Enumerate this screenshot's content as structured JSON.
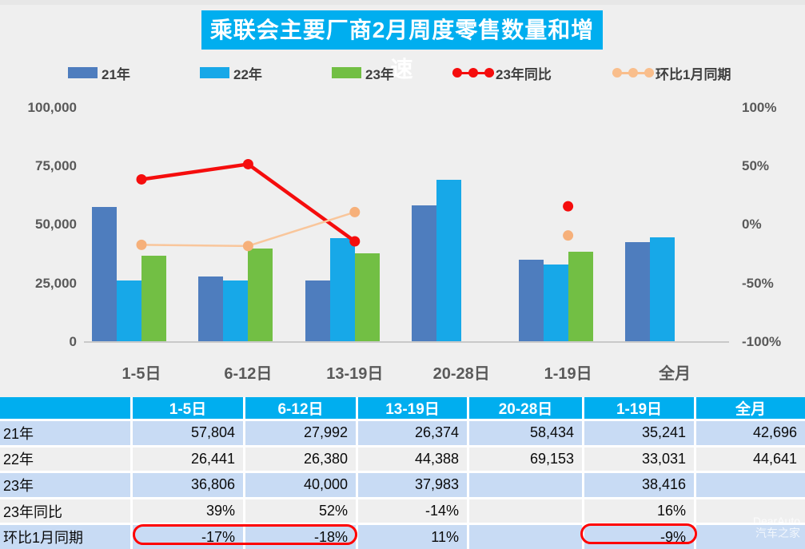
{
  "title": "乘联会主要厂商2月周度零售数量和增速",
  "legend": [
    {
      "label": "21年",
      "type": "bar",
      "color": "#4E7DBE"
    },
    {
      "label": "22年",
      "type": "bar",
      "color": "#17A8E8"
    },
    {
      "label": "23年",
      "type": "bar",
      "color": "#72BF44"
    },
    {
      "label": "23年同比",
      "type": "line",
      "color": "#F50D0D"
    },
    {
      "label": "环比1月同期",
      "type": "line",
      "color": "#F9BE8C"
    }
  ],
  "chart_data": {
    "type": "bar+line",
    "title": "乘联会主要厂商2月周度零售数量和增速",
    "categories": [
      "1-5日",
      "6-12日",
      "13-19日",
      "20-28日",
      "1-19日",
      "全月"
    ],
    "bar_series": [
      {
        "name": "21年",
        "color": "#4E7DBE",
        "values": [
          57804,
          27992,
          26374,
          58434,
          35241,
          42696
        ]
      },
      {
        "name": "22年",
        "color": "#17A8E8",
        "values": [
          26441,
          26380,
          44388,
          69153,
          33031,
          44641
        ]
      },
      {
        "name": "23年",
        "color": "#72BF44",
        "values": [
          36806,
          40000,
          37983,
          null,
          38416,
          null
        ]
      }
    ],
    "line_series": [
      {
        "name": "23年同比",
        "color": "#F50D0D",
        "marker_color": "#F50D0D",
        "stroke_width": 4.5,
        "values_pct": [
          39,
          52,
          -14,
          null,
          16,
          null
        ]
      },
      {
        "name": "环比1月同期",
        "color": "#F9C69B",
        "marker_color": "#F6B07A",
        "stroke_width": 2.5,
        "values_pct": [
          -17,
          -18,
          11,
          null,
          -9,
          null
        ]
      }
    ],
    "y_axis_left": {
      "ticks": [
        "100,000",
        "75,000",
        "50,000",
        "25,000",
        "0"
      ],
      "min": 0,
      "max": 100000
    },
    "y_axis_right": {
      "ticks": [
        "100%",
        "50%",
        "0%",
        "-50%",
        "-100%"
      ],
      "min": -100,
      "max": 100
    },
    "grid": false,
    "legend_position": "top"
  },
  "table": {
    "columns": [
      "",
      "1-5日",
      "6-12日",
      "13-19日",
      "20-28日",
      "1-19日",
      "全月"
    ],
    "rows": [
      {
        "label": "21年",
        "values": [
          "57,804",
          "27,992",
          "26,374",
          "58,434",
          "35,241",
          "42,696"
        ]
      },
      {
        "label": "22年",
        "values": [
          "26,441",
          "26,380",
          "44,388",
          "69,153",
          "33,031",
          "44,641"
        ]
      },
      {
        "label": "23年",
        "values": [
          "36,806",
          "40,000",
          "37,983",
          "",
          "38,416",
          ""
        ]
      },
      {
        "label": "23年同比",
        "values": [
          "39%",
          "52%",
          "-14%",
          "",
          "16%",
          ""
        ]
      },
      {
        "label": "环比1月同期",
        "values": [
          "-17%",
          "-18%",
          "11%",
          "",
          "-9%",
          ""
        ]
      }
    ],
    "highlights": [
      {
        "row": 4,
        "col_start": 1,
        "col_end": 2,
        "circled_values": [
          "-17%",
          "-18%"
        ]
      },
      {
        "row": 4,
        "col_start": 5,
        "col_end": 5,
        "circled_values": [
          "-9%"
        ]
      }
    ],
    "colors": {
      "header_bg": "#00AEEF",
      "stripe_blue": "#C8DBF4",
      "stripe_gray": "#EFEFEF",
      "highlight_stroke": "#FF0000"
    }
  },
  "watermark": {
    "line1": "DearAuto",
    "line2": "汽车之家"
  }
}
